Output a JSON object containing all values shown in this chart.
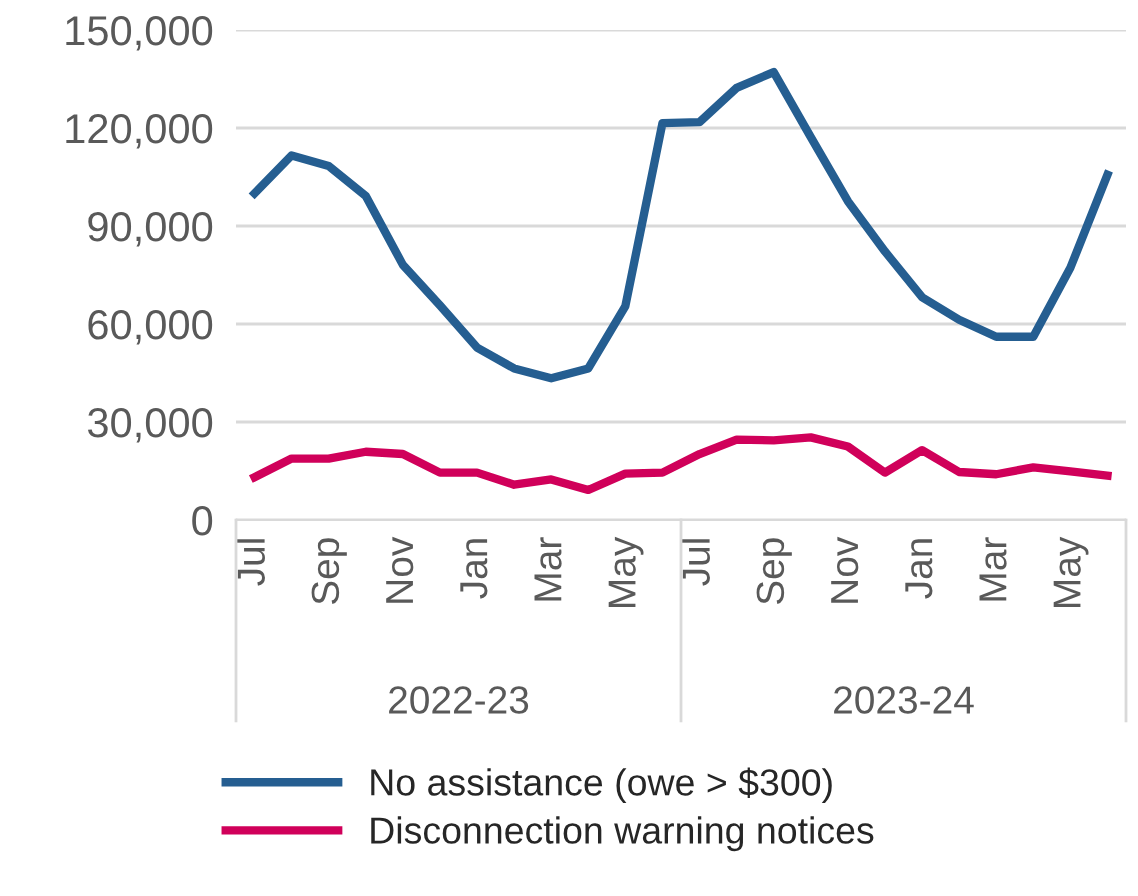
{
  "chart_data": {
    "type": "line",
    "categories": [
      "Jul",
      null,
      "Sep",
      null,
      "Nov",
      null,
      "Jan",
      null,
      "Mar",
      null,
      "May",
      null,
      "Jul",
      null,
      "Sep",
      null,
      "Nov",
      null,
      "Jan",
      null,
      "Mar",
      null,
      "May",
      null
    ],
    "series": [
      {
        "name": "No assistance (owe > $300)",
        "color": "#255e91",
        "values": [
          100000,
          111600,
          108400,
          99200,
          78100,
          65700,
          52800,
          46400,
          43400,
          46400,
          65500,
          121500,
          121800,
          132300,
          137100,
          117200,
          97600,
          82200,
          68200,
          61300,
          56100,
          56100,
          77200,
          105700
        ]
      },
      {
        "name": "Disconnection warning notices",
        "color": "#d0005a",
        "values": [
          13100,
          18800,
          18800,
          20900,
          20200,
          14500,
          14500,
          10800,
          12400,
          9200,
          14200,
          14500,
          20200,
          24600,
          24400,
          25300,
          22500,
          14500,
          21400,
          14700,
          14000,
          16100,
          14900,
          13600
        ]
      }
    ],
    "ylim": [
      0,
      150000
    ],
    "yticks": [
      {
        "value": 0,
        "label": "0"
      },
      {
        "value": 30000,
        "label": "30,000"
      },
      {
        "value": 60000,
        "label": "60,000"
      },
      {
        "value": 90000,
        "label": "90,000"
      },
      {
        "value": 120000,
        "label": "120,000"
      },
      {
        "value": 150000,
        "label": "150,000"
      }
    ],
    "grid": "y",
    "legend": "bottom",
    "marker": "none",
    "line_style": "solid",
    "annotations": [
      "2022-23",
      "2023-24"
    ]
  }
}
